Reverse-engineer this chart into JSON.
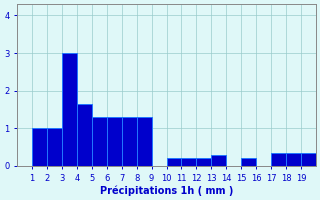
{
  "edges": [
    0,
    1,
    2,
    3,
    4,
    5,
    6,
    7,
    8,
    9,
    10,
    11,
    12,
    13,
    14,
    15,
    16,
    17,
    18,
    19,
    20
  ],
  "values": [
    0,
    1.0,
    1.0,
    3.0,
    1.65,
    1.3,
    1.3,
    1.3,
    1.3,
    0.0,
    0.2,
    0.2,
    0.2,
    0.3,
    0.0,
    0.2,
    0.0,
    0.35,
    0.35,
    0.35
  ],
  "bar_color": "#0000cc",
  "bar_edge_color": "#2277ff",
  "background_color": "#dff8f8",
  "grid_color": "#99cccc",
  "axis_color": "#888888",
  "text_color": "#0000cc",
  "xlabel": "Précipitations 1h ( mm )",
  "ylim": [
    0,
    4.3
  ],
  "yticks": [
    0,
    1,
    2,
    3,
    4
  ],
  "xlim": [
    0,
    20
  ]
}
